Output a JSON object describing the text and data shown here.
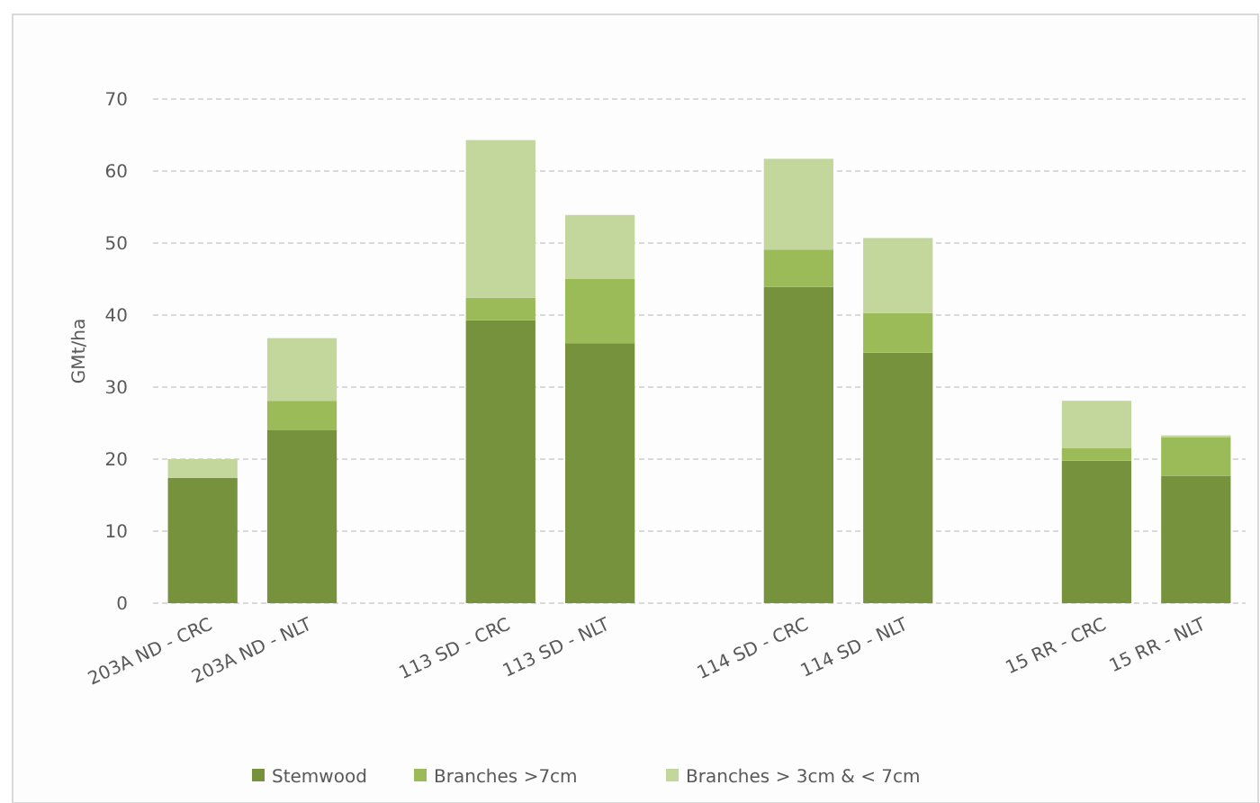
{
  "chart_data": {
    "type": "bar",
    "stacked": true,
    "ylabel": "GMt/ha",
    "categories": [
      "203A ND - CRC",
      "203A ND - NLT",
      null,
      "113 SD - CRC",
      "113 SD - NLT",
      null,
      "114 SD - CRC",
      "114 SD - NLT",
      null,
      "15 RR - CRC",
      "15 RR - NLT"
    ],
    "series": [
      {
        "name": "Stemwood",
        "color": "#76923c",
        "values": [
          17.4,
          24,
          null,
          39.3,
          36.1,
          null,
          43.9,
          34.8,
          null,
          19.8,
          17.7
        ]
      },
      {
        "name": "Branches >7cm",
        "color": "#9bbb59",
        "values": [
          0,
          4.1,
          null,
          3.1,
          8.9,
          null,
          5.2,
          5.5,
          null,
          1.7,
          5.3
        ]
      },
      {
        "name": "Branches > 3cm & < 7cm",
        "color": "#c3d69b",
        "values": [
          2.6,
          8.7,
          null,
          21.9,
          8.9,
          null,
          12.6,
          10.4,
          null,
          6.6,
          0.3
        ]
      }
    ],
    "ylim": [
      0,
      70
    ],
    "yticks": [
      0,
      10,
      20,
      30,
      40,
      50,
      60,
      70
    ],
    "grid": "y",
    "legend": "bottom"
  }
}
